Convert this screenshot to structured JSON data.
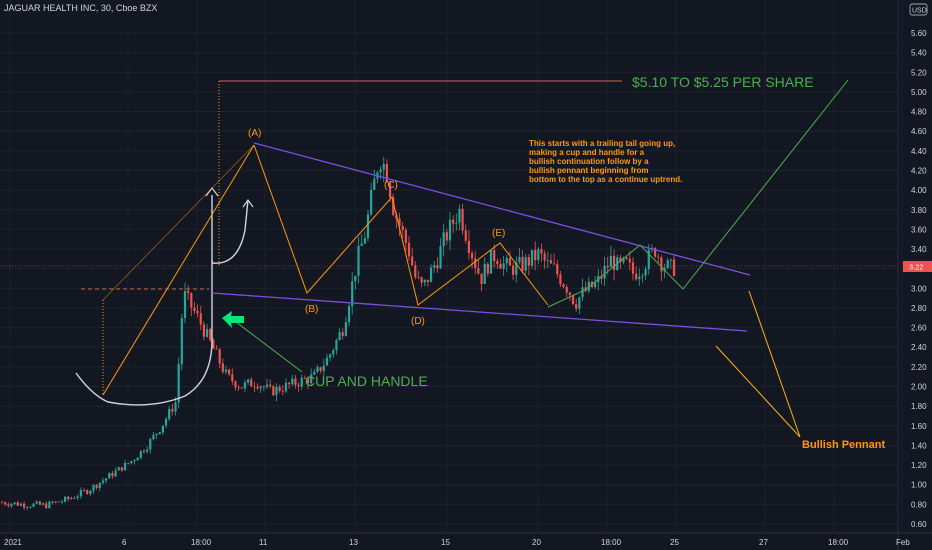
{
  "header": {
    "symbol": "JAGUAR HEALTH INC, 30, Cboe BZX",
    "currency": "USD"
  },
  "colors": {
    "up": "#26a69a",
    "down": "#ef5350",
    "wave": "#ff9800",
    "pennant": "#7b4fe0",
    "target": "#4caf50",
    "cup": "#ffffff"
  },
  "chart_data": {
    "type": "candlestick",
    "ylim": [
      0.6,
      5.8
    ],
    "yticks": [
      "5.60",
      "5.40",
      "5.20",
      "5.00",
      "4.80",
      "4.60",
      "4.40",
      "4.20",
      "4.00",
      "3.80",
      "3.60",
      "3.40",
      "3.20",
      "3.00",
      "2.80",
      "2.60",
      "2.40",
      "2.20",
      "2.00",
      "1.80",
      "1.60",
      "1.40",
      "1.20",
      "1.00",
      "0.80",
      "0.60"
    ],
    "xticks": [
      "2021",
      "6",
      "18:00",
      "11",
      "13",
      "15",
      "20",
      "18:00",
      "25",
      "27",
      "18:00",
      "Feb"
    ],
    "current_price": "3.22",
    "price_path": [
      [
        0,
        0.82
      ],
      [
        3,
        0.8
      ],
      [
        6,
        0.79
      ],
      [
        9,
        0.85
      ],
      [
        12,
        0.95
      ],
      [
        15,
        1.1
      ],
      [
        18,
        1.25
      ],
      [
        20,
        1.4
      ],
      [
        22,
        1.6
      ],
      [
        24,
        1.85
      ],
      [
        25,
        2.95
      ],
      [
        27,
        2.7
      ],
      [
        29,
        2.4
      ],
      [
        31,
        2.1
      ],
      [
        33,
        2.0
      ],
      [
        35,
        2.05
      ],
      [
        37,
        1.95
      ],
      [
        39,
        2.0
      ],
      [
        41,
        2.05
      ],
      [
        43,
        2.1
      ],
      [
        45,
        2.3
      ],
      [
        47,
        2.6
      ],
      [
        48,
        2.95
      ],
      [
        49,
        3.3
      ],
      [
        50,
        3.55
      ],
      [
        51,
        3.95
      ],
      [
        52,
        4.35
      ],
      [
        53,
        4.2
      ],
      [
        54,
        3.8
      ],
      [
        55,
        3.6
      ],
      [
        56,
        3.4
      ],
      [
        57,
        3.1
      ],
      [
        58,
        3.0
      ],
      [
        59,
        3.15
      ],
      [
        60,
        3.3
      ],
      [
        61,
        3.5
      ],
      [
        62,
        3.65
      ],
      [
        63,
        3.8
      ],
      [
        64,
        3.55
      ],
      [
        65,
        3.3
      ],
      [
        66,
        3.1
      ],
      [
        67,
        3.25
      ],
      [
        68,
        3.35
      ],
      [
        69,
        3.25
      ],
      [
        70,
        3.2
      ],
      [
        71,
        3.22
      ],
      [
        72,
        3.25
      ],
      [
        73,
        3.3
      ],
      [
        74,
        3.35
      ],
      [
        75,
        3.25
      ],
      [
        76,
        3.2
      ],
      [
        77,
        3.1
      ],
      [
        78,
        3.0
      ],
      [
        79,
        2.85
      ],
      [
        80,
        2.95
      ],
      [
        81,
        3.0
      ],
      [
        82,
        3.05
      ],
      [
        84,
        3.3
      ],
      [
        85,
        3.2
      ],
      [
        86,
        3.25
      ],
      [
        87,
        3.15
      ],
      [
        88,
        3.2
      ],
      [
        89,
        3.3
      ],
      [
        90,
        3.4
      ],
      [
        91,
        3.25
      ],
      [
        92,
        3.2
      ],
      [
        93,
        3.22
      ]
    ]
  },
  "annotations": {
    "wave_labels": [
      "(A)",
      "(B)",
      "(C)",
      "(D)",
      "(E)"
    ],
    "target_label": "$5.10 TO $5.25 PER SHARE",
    "cup_label": "CUP AND HANDLE",
    "pennant_label": "Bullish Pennant",
    "note_lines": [
      "This starts with a trailing tail going up,",
      "making a cup and handle for a",
      "bullish continuation follow by a",
      "bullish pennant beginning from",
      "bottom to the top as a continue uptrend."
    ]
  }
}
